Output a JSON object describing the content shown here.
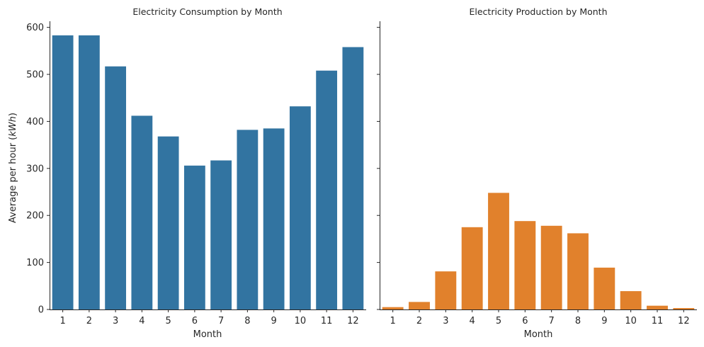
{
  "chart_data": [
    {
      "type": "bar",
      "title": "Electricity Consumption by Month",
      "xlabel": "Month",
      "ylabel": "Average per hour (kWh)",
      "categories": [
        "1",
        "2",
        "3",
        "4",
        "5",
        "6",
        "7",
        "8",
        "9",
        "10",
        "11",
        "12"
      ],
      "values": [
        583,
        583,
        517,
        412,
        368,
        306,
        317,
        382,
        385,
        432,
        508,
        558
      ],
      "ylim": [
        0,
        613
      ],
      "yticks": [
        "0",
        "100",
        "200",
        "300",
        "400",
        "500",
        "600"
      ],
      "color": "#3274a1",
      "grid": false
    },
    {
      "type": "bar",
      "title": "Electricity Production by Month",
      "xlabel": "Month",
      "ylabel": "",
      "categories": [
        "1",
        "2",
        "3",
        "4",
        "5",
        "6",
        "7",
        "8",
        "9",
        "10",
        "11",
        "12"
      ],
      "values": [
        5,
        16,
        81,
        175,
        248,
        188,
        178,
        162,
        89,
        39,
        8,
        3
      ],
      "ylim": [
        0,
        613
      ],
      "shared_y": true,
      "color": "#e1812c",
      "grid": false
    }
  ]
}
